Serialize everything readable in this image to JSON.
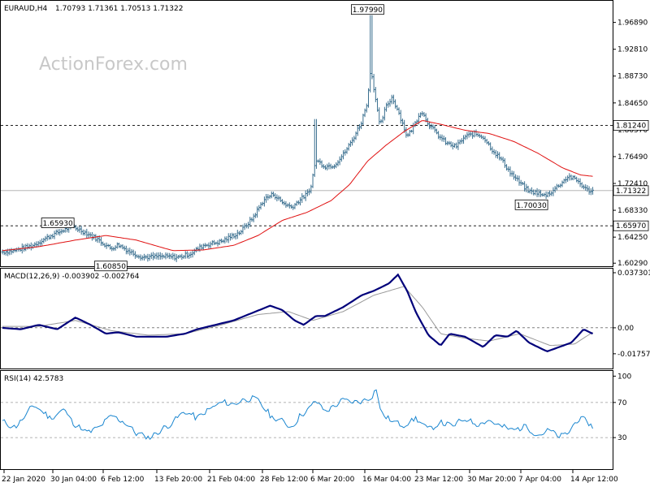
{
  "chart_data": [
    {
      "type": "line",
      "panel": "price",
      "symbol_label": "EURAUD,H4",
      "ohlc": "1.70793 1.71361 1.70513 1.71322",
      "watermark": "ActionForex.com",
      "ylim": [
        1.5995,
        2.0005
      ],
      "y_ticks": [
        "1.96890",
        "1.92810",
        "1.88730",
        "1.84650",
        "1.80570",
        "1.76490",
        "1.72410",
        "1.68330",
        "1.64250",
        "1.60290"
      ],
      "x_ticks": [
        "22 Jan 2020",
        "30 Jan 04:00",
        "6 Feb 12:00",
        "13 Feb 20:00",
        "21 Feb 04:00",
        "28 Feb 12:00",
        "6 Mar 20:00",
        "16 Mar 04:00",
        "23 Mar 12:00",
        "30 Mar 20:00",
        "7 Apr 04:00",
        "14 Apr 12:00"
      ],
      "levels": [
        {
          "value": 1.8124,
          "label": "1.81240"
        },
        {
          "value": 1.6597,
          "label": "1.65970"
        }
      ],
      "current": {
        "value": 1.71322,
        "label": "1.71322"
      },
      "annotations": [
        {
          "label": "1.97990",
          "value": 1.9799,
          "t": 0.6
        },
        {
          "label": "1.65930",
          "value": 1.6593,
          "t": 0.115
        },
        {
          "label": "1.60850",
          "value": 1.6085,
          "t": 0.178
        },
        {
          "label": "1.70030",
          "value": 1.7003,
          "t": 0.888
        }
      ],
      "close_keypoints": [
        [
          0.0,
          1.62
        ],
        [
          0.02,
          1.622
        ],
        [
          0.05,
          1.63
        ],
        [
          0.08,
          1.645
        ],
        [
          0.115,
          1.659
        ],
        [
          0.135,
          1.65
        ],
        [
          0.155,
          1.64
        ],
        [
          0.178,
          1.625
        ],
        [
          0.19,
          1.631
        ],
        [
          0.21,
          1.62
        ],
        [
          0.23,
          1.612
        ],
        [
          0.26,
          1.613
        ],
        [
          0.29,
          1.612
        ],
        [
          0.31,
          1.618
        ],
        [
          0.33,
          1.63
        ],
        [
          0.36,
          1.636
        ],
        [
          0.39,
          1.65
        ],
        [
          0.41,
          1.67
        ],
        [
          0.43,
          1.7
        ],
        [
          0.445,
          1.708
        ],
        [
          0.46,
          1.695
        ],
        [
          0.475,
          1.688
        ],
        [
          0.49,
          1.7
        ],
        [
          0.505,
          1.712
        ],
        [
          0.515,
          1.76
        ],
        [
          0.53,
          1.75
        ],
        [
          0.545,
          1.752
        ],
        [
          0.56,
          1.768
        ],
        [
          0.575,
          1.79
        ],
        [
          0.59,
          1.818
        ],
        [
          0.6,
          1.85
        ],
        [
          0.605,
          1.9
        ],
        [
          0.612,
          1.86
        ],
        [
          0.62,
          1.81
        ],
        [
          0.63,
          1.84
        ],
        [
          0.64,
          1.855
        ],
        [
          0.65,
          1.835
        ],
        [
          0.665,
          1.795
        ],
        [
          0.675,
          1.81
        ],
        [
          0.688,
          1.835
        ],
        [
          0.7,
          1.815
        ],
        [
          0.715,
          1.798
        ],
        [
          0.73,
          1.785
        ],
        [
          0.745,
          1.78
        ],
        [
          0.76,
          1.795
        ],
        [
          0.775,
          1.8
        ],
        [
          0.79,
          1.795
        ],
        [
          0.805,
          1.775
        ],
        [
          0.82,
          1.76
        ],
        [
          0.835,
          1.74
        ],
        [
          0.85,
          1.725
        ],
        [
          0.865,
          1.712
        ],
        [
          0.88,
          1.71
        ],
        [
          0.888,
          1.705
        ],
        [
          0.9,
          1.71
        ],
        [
          0.915,
          1.722
        ],
        [
          0.93,
          1.735
        ],
        [
          0.945,
          1.728
        ],
        [
          0.96,
          1.714
        ],
        [
          0.97,
          1.713
        ]
      ],
      "ma_keypoints": [
        [
          0.0,
          1.622
        ],
        [
          0.06,
          1.628
        ],
        [
          0.12,
          1.638
        ],
        [
          0.17,
          1.645
        ],
        [
          0.22,
          1.638
        ],
        [
          0.28,
          1.622
        ],
        [
          0.33,
          1.623
        ],
        [
          0.38,
          1.63
        ],
        [
          0.42,
          1.645
        ],
        [
          0.46,
          1.668
        ],
        [
          0.5,
          1.68
        ],
        [
          0.54,
          1.698
        ],
        [
          0.57,
          1.722
        ],
        [
          0.6,
          1.758
        ],
        [
          0.63,
          1.782
        ],
        [
          0.66,
          1.803
        ],
        [
          0.69,
          1.82
        ],
        [
          0.72,
          1.814
        ],
        [
          0.76,
          1.805
        ],
        [
          0.8,
          1.8
        ],
        [
          0.84,
          1.788
        ],
        [
          0.88,
          1.77
        ],
        [
          0.92,
          1.748
        ],
        [
          0.95,
          1.737
        ],
        [
          0.97,
          1.735
        ]
      ]
    },
    {
      "type": "line",
      "panel": "macd",
      "label": "MACD(12,26,9) -0.003902 -0.002764",
      "ylim": [
        -0.027,
        0.0395
      ],
      "y_ticks": [
        "0.037301",
        "0.00",
        "-0.017577"
      ],
      "macd_keypoints": [
        [
          0.0,
          0.0
        ],
        [
          0.03,
          -0.001
        ],
        [
          0.06,
          0.002
        ],
        [
          0.09,
          -0.001
        ],
        [
          0.12,
          0.007
        ],
        [
          0.145,
          0.002
        ],
        [
          0.17,
          -0.004
        ],
        [
          0.19,
          -0.003
        ],
        [
          0.22,
          -0.006
        ],
        [
          0.24,
          -0.006
        ],
        [
          0.27,
          -0.006
        ],
        [
          0.3,
          -0.004
        ],
        [
          0.32,
          -0.001
        ],
        [
          0.35,
          0.002
        ],
        [
          0.38,
          0.005
        ],
        [
          0.41,
          0.01
        ],
        [
          0.44,
          0.015
        ],
        [
          0.46,
          0.012
        ],
        [
          0.48,
          0.005
        ],
        [
          0.495,
          0.002
        ],
        [
          0.515,
          0.008
        ],
        [
          0.53,
          0.008
        ],
        [
          0.56,
          0.014
        ],
        [
          0.59,
          0.022
        ],
        [
          0.61,
          0.025
        ],
        [
          0.635,
          0.03
        ],
        [
          0.65,
          0.036
        ],
        [
          0.665,
          0.025
        ],
        [
          0.68,
          0.01
        ],
        [
          0.7,
          -0.005
        ],
        [
          0.72,
          -0.012
        ],
        [
          0.735,
          -0.004
        ],
        [
          0.76,
          -0.006
        ],
        [
          0.79,
          -0.013
        ],
        [
          0.81,
          -0.005
        ],
        [
          0.83,
          -0.006
        ],
        [
          0.845,
          -0.002
        ],
        [
          0.865,
          -0.01
        ],
        [
          0.895,
          -0.016
        ],
        [
          0.915,
          -0.013
        ],
        [
          0.935,
          -0.01
        ],
        [
          0.955,
          -0.001
        ],
        [
          0.97,
          -0.004
        ]
      ],
      "signal_keypoints": [
        [
          0.0,
          0.001
        ],
        [
          0.06,
          0.001
        ],
        [
          0.12,
          0.005
        ],
        [
          0.18,
          -0.002
        ],
        [
          0.24,
          -0.005
        ],
        [
          0.3,
          -0.004
        ],
        [
          0.36,
          0.002
        ],
        [
          0.42,
          0.009
        ],
        [
          0.47,
          0.011
        ],
        [
          0.51,
          0.005
        ],
        [
          0.56,
          0.011
        ],
        [
          0.61,
          0.022
        ],
        [
          0.66,
          0.028
        ],
        [
          0.69,
          0.014
        ],
        [
          0.72,
          -0.004
        ],
        [
          0.76,
          -0.007
        ],
        [
          0.8,
          -0.009
        ],
        [
          0.85,
          -0.004
        ],
        [
          0.9,
          -0.012
        ],
        [
          0.94,
          -0.011
        ],
        [
          0.97,
          -0.003
        ]
      ]
    },
    {
      "type": "line",
      "panel": "rsi",
      "label": "RSI(14) 42.5783",
      "ylim": [
        -5,
        105
      ],
      "y_ticks": [
        "100",
        "70",
        "30"
      ],
      "rsi_keypoints": [
        [
          0.0,
          48
        ],
        [
          0.02,
          42
        ],
        [
          0.04,
          55
        ],
        [
          0.05,
          68
        ],
        [
          0.065,
          60
        ],
        [
          0.08,
          52
        ],
        [
          0.1,
          62
        ],
        [
          0.12,
          45
        ],
        [
          0.14,
          35
        ],
        [
          0.16,
          42
        ],
        [
          0.18,
          55
        ],
        [
          0.2,
          48
        ],
        [
          0.22,
          35
        ],
        [
          0.24,
          30
        ],
        [
          0.26,
          38
        ],
        [
          0.28,
          48
        ],
        [
          0.3,
          60
        ],
        [
          0.32,
          52
        ],
        [
          0.34,
          62
        ],
        [
          0.36,
          70
        ],
        [
          0.38,
          68
        ],
        [
          0.4,
          75
        ],
        [
          0.42,
          72
        ],
        [
          0.44,
          55
        ],
        [
          0.46,
          48
        ],
        [
          0.475,
          42
        ],
        [
          0.49,
          56
        ],
        [
          0.505,
          63
        ],
        [
          0.515,
          72
        ],
        [
          0.53,
          60
        ],
        [
          0.545,
          66
        ],
        [
          0.56,
          72
        ],
        [
          0.58,
          70
        ],
        [
          0.6,
          74
        ],
        [
          0.61,
          80
        ],
        [
          0.615,
          90
        ],
        [
          0.62,
          60
        ],
        [
          0.64,
          48
        ],
        [
          0.66,
          45
        ],
        [
          0.68,
          52
        ],
        [
          0.7,
          38
        ],
        [
          0.72,
          48
        ],
        [
          0.74,
          42
        ],
        [
          0.76,
          52
        ],
        [
          0.78,
          46
        ],
        [
          0.8,
          50
        ],
        [
          0.82,
          42
        ],
        [
          0.84,
          38
        ],
        [
          0.86,
          44
        ],
        [
          0.88,
          33
        ],
        [
          0.9,
          38
        ],
        [
          0.915,
          30
        ],
        [
          0.93,
          35
        ],
        [
          0.945,
          52
        ],
        [
          0.96,
          48
        ],
        [
          0.97,
          42
        ]
      ]
    }
  ],
  "colors": {
    "price": "#3a6f8f",
    "ma": "#e01010",
    "macd": "#00007a",
    "signal": "#999999",
    "rsi": "#1a86d0",
    "grid": "#000000",
    "watermark": "#c8c8c8"
  }
}
